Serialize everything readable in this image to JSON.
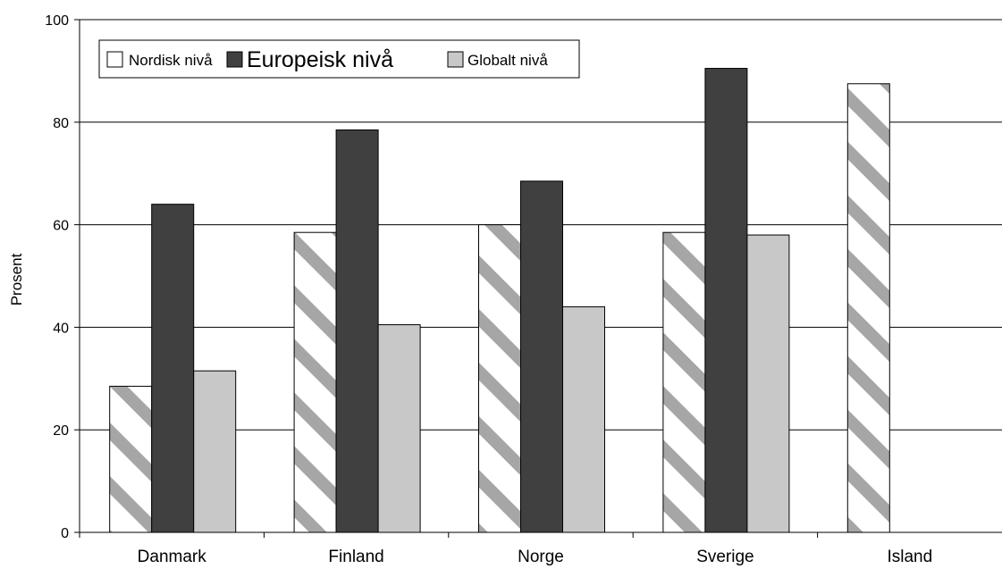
{
  "chart_data": {
    "type": "bar",
    "ylabel": "Prosent",
    "xlabel": "",
    "ylim": [
      0,
      100
    ],
    "yticks": [
      0,
      20,
      40,
      60,
      80,
      100
    ],
    "grid": true,
    "legend_position": "top-left",
    "categories": [
      "Danmark",
      "Finland",
      "Norge",
      "Sverige",
      "Island"
    ],
    "series": [
      {
        "name": "Nordisk nivå",
        "values": [
          28.5,
          58.5,
          60,
          58.5,
          87.5
        ],
        "color": "#ffffff",
        "pattern": "diagonal-stripes",
        "pattern_color": "#a6a6a6"
      },
      {
        "name": "Europeisk nivå",
        "values": [
          64,
          78.5,
          68.5,
          90.5,
          null
        ],
        "color": "#404040"
      },
      {
        "name": "Globalt nivå",
        "values": [
          31.5,
          40.5,
          44,
          58,
          null
        ],
        "color": "#c8c8c8"
      }
    ]
  }
}
